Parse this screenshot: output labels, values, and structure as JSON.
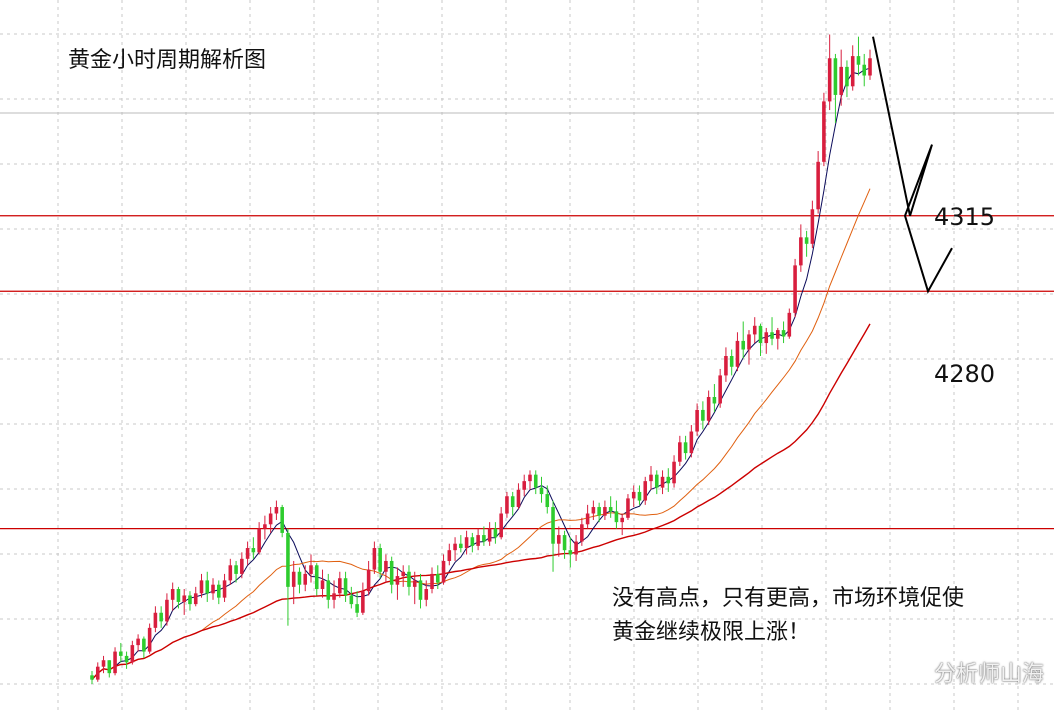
{
  "title": "黄金小时周期解析图",
  "annotation": {
    "line1": "没有高点，只有更高，市场环境促使",
    "line2": "黄金继续极限上涨！"
  },
  "watermark": "分析师山海",
  "colors": {
    "up": "#d81e3e",
    "down": "#2ecc2e",
    "ma_short": "#0a0a5a",
    "ma_mid": "#e06010",
    "ma_long": "#cc0000",
    "level_line": "#cc0000",
    "grid": "#c8c8c8",
    "projection": "#000000"
  },
  "chart_data": {
    "type": "candlestick",
    "title": "黄金小时周期解析图",
    "ylim": [
      4085,
      4415
    ],
    "grid": true,
    "levels": [
      {
        "label": "4315",
        "value": 4315
      },
      {
        "label": "4280",
        "value": 4280
      },
      {
        "label": "",
        "value": 4170
      }
    ],
    "ohlc": [
      [
        4102,
        4104,
        4098,
        4100
      ],
      [
        4100,
        4108,
        4099,
        4106
      ],
      [
        4106,
        4111,
        4103,
        4109
      ],
      [
        4109,
        4109,
        4101,
        4103
      ],
      [
        4103,
        4115,
        4102,
        4113
      ],
      [
        4113,
        4117,
        4108,
        4111
      ],
      [
        4111,
        4113,
        4105,
        4108
      ],
      [
        4108,
        4118,
        4107,
        4116
      ],
      [
        4116,
        4121,
        4113,
        4119
      ],
      [
        4119,
        4120,
        4110,
        4113
      ],
      [
        4113,
        4126,
        4112,
        4124
      ],
      [
        4124,
        4134,
        4122,
        4131
      ],
      [
        4131,
        4134,
        4124,
        4127
      ],
      [
        4127,
        4140,
        4125,
        4137
      ],
      [
        4137,
        4145,
        4132,
        4142
      ],
      [
        4142,
        4143,
        4133,
        4136
      ],
      [
        4136,
        4142,
        4130,
        4139
      ],
      [
        4139,
        4141,
        4132,
        4135
      ],
      [
        4135,
        4143,
        4134,
        4140
      ],
      [
        4140,
        4149,
        4138,
        4146
      ],
      [
        4146,
        4150,
        4136,
        4140
      ],
      [
        4140,
        4147,
        4137,
        4144
      ],
      [
        4144,
        4146,
        4135,
        4138
      ],
      [
        4138,
        4149,
        4136,
        4146
      ],
      [
        4146,
        4156,
        4144,
        4153
      ],
      [
        4153,
        4155,
        4145,
        4149
      ],
      [
        4149,
        4159,
        4147,
        4156
      ],
      [
        4156,
        4164,
        4153,
        4161
      ],
      [
        4161,
        4166,
        4156,
        4159
      ],
      [
        4159,
        4173,
        4158,
        4170
      ],
      [
        4170,
        4176,
        4165,
        4172
      ],
      [
        4172,
        4180,
        4168,
        4177
      ],
      [
        4177,
        4183,
        4174,
        4180
      ],
      [
        4180,
        4181,
        4166,
        4168
      ],
      [
        4168,
        4170,
        4125,
        4143
      ],
      [
        4143,
        4155,
        4135,
        4150
      ],
      [
        4150,
        4152,
        4140,
        4144
      ],
      [
        4144,
        4153,
        4141,
        4149
      ],
      [
        4149,
        4158,
        4145,
        4153
      ],
      [
        4153,
        4154,
        4139,
        4142
      ],
      [
        4142,
        4151,
        4138,
        4146
      ],
      [
        4146,
        4149,
        4133,
        4137
      ],
      [
        4137,
        4146,
        4133,
        4140
      ],
      [
        4140,
        4150,
        4138,
        4147
      ],
      [
        4147,
        4150,
        4136,
        4139
      ],
      [
        4139,
        4143,
        4133,
        4135
      ],
      [
        4135,
        4141,
        4129,
        4131
      ],
      [
        4131,
        4145,
        4130,
        4141
      ],
      [
        4141,
        4155,
        4139,
        4151
      ],
      [
        4151,
        4164,
        4149,
        4161
      ],
      [
        4161,
        4163,
        4147,
        4150
      ],
      [
        4150,
        4158,
        4145,
        4155
      ],
      [
        4155,
        4157,
        4140,
        4144
      ],
      [
        4144,
        4152,
        4137,
        4148
      ],
      [
        4148,
        4153,
        4143,
        4150
      ],
      [
        4150,
        4153,
        4139,
        4143
      ],
      [
        4143,
        4150,
        4135,
        4146
      ],
      [
        4146,
        4149,
        4133,
        4137
      ],
      [
        4137,
        4146,
        4134,
        4142
      ],
      [
        4142,
        4152,
        4140,
        4149
      ],
      [
        4149,
        4153,
        4142,
        4145
      ],
      [
        4145,
        4158,
        4144,
        4155
      ],
      [
        4155,
        4163,
        4153,
        4160
      ],
      [
        4160,
        4166,
        4155,
        4163
      ],
      [
        4163,
        4167,
        4159,
        4161
      ],
      [
        4161,
        4169,
        4158,
        4166
      ],
      [
        4166,
        4168,
        4159,
        4162
      ],
      [
        4162,
        4170,
        4160,
        4167
      ],
      [
        4167,
        4171,
        4162,
        4164
      ],
      [
        4164,
        4173,
        4162,
        4170
      ],
      [
        4170,
        4173,
        4163,
        4166
      ],
      [
        4166,
        4180,
        4165,
        4177
      ],
      [
        4177,
        4187,
        4175,
        4185
      ],
      [
        4185,
        4187,
        4176,
        4180
      ],
      [
        4180,
        4191,
        4179,
        4188
      ],
      [
        4188,
        4195,
        4185,
        4192
      ],
      [
        4192,
        4197,
        4188,
        4195
      ],
      [
        4195,
        4197,
        4186,
        4189
      ],
      [
        4189,
        4194,
        4182,
        4186
      ],
      [
        4186,
        4190,
        4177,
        4180
      ],
      [
        4180,
        4183,
        4150,
        4163
      ],
      [
        4163,
        4171,
        4157,
        4167
      ],
      [
        4167,
        4169,
        4156,
        4160
      ],
      [
        4160,
        4166,
        4152,
        4158
      ],
      [
        4158,
        4167,
        4155,
        4164
      ],
      [
        4164,
        4175,
        4162,
        4172
      ],
      [
        4172,
        4181,
        4170,
        4177
      ],
      [
        4177,
        4183,
        4174,
        4180
      ],
      [
        4180,
        4182,
        4173,
        4176
      ],
      [
        4176,
        4183,
        4174,
        4180
      ],
      [
        4180,
        4185,
        4175,
        4178
      ],
      [
        4178,
        4183,
        4170,
        4173
      ],
      [
        4173,
        4177,
        4167,
        4175
      ],
      [
        4175,
        4186,
        4174,
        4184
      ],
      [
        4184,
        4190,
        4180,
        4187
      ],
      [
        4187,
        4190,
        4181,
        4183
      ],
      [
        4183,
        4194,
        4181,
        4192
      ],
      [
        4192,
        4199,
        4188,
        4195
      ],
      [
        4195,
        4197,
        4186,
        4189
      ],
      [
        4189,
        4197,
        4186,
        4194
      ],
      [
        4194,
        4198,
        4187,
        4191
      ],
      [
        4191,
        4204,
        4189,
        4201
      ],
      [
        4201,
        4213,
        4199,
        4210
      ],
      [
        4210,
        4213,
        4202,
        4205
      ],
      [
        4205,
        4218,
        4203,
        4215
      ],
      [
        4215,
        4228,
        4213,
        4225
      ],
      [
        4225,
        4229,
        4216,
        4220
      ],
      [
        4220,
        4234,
        4218,
        4231
      ],
      [
        4231,
        4237,
        4224,
        4228
      ],
      [
        4228,
        4244,
        4226,
        4241
      ],
      [
        4241,
        4254,
        4238,
        4250
      ],
      [
        4250,
        4253,
        4241,
        4245
      ],
      [
        4245,
        4261,
        4243,
        4257
      ],
      [
        4257,
        4266,
        4249,
        4253
      ],
      [
        4253,
        4262,
        4246,
        4260
      ],
      [
        4260,
        4268,
        4256,
        4264
      ],
      [
        4264,
        4265,
        4250,
        4256
      ],
      [
        4256,
        4263,
        4251,
        4261
      ],
      [
        4261,
        4268,
        4255,
        4258
      ],
      [
        4258,
        4263,
        4253,
        4262
      ],
      [
        4262,
        4266,
        4256,
        4259
      ],
      [
        4259,
        4272,
        4258,
        4270
      ],
      [
        4270,
        4295,
        4268,
        4292
      ],
      [
        4292,
        4311,
        4289,
        4305
      ],
      [
        4305,
        4308,
        4296,
        4302
      ],
      [
        4302,
        4322,
        4300,
        4318
      ],
      [
        4318,
        4345,
        4316,
        4340
      ],
      [
        4340,
        4372,
        4338,
        4368
      ],
      [
        4368,
        4399,
        4364,
        4388
      ],
      [
        4388,
        4390,
        4358,
        4371
      ],
      [
        4371,
        4392,
        4366,
        4384
      ],
      [
        4384,
        4387,
        4370,
        4375
      ],
      [
        4375,
        4394,
        4373,
        4389
      ],
      [
        4389,
        4398,
        4380,
        4385
      ],
      [
        4385,
        4390,
        4375,
        4380
      ],
      [
        4380,
        4392,
        4378,
        4388
      ]
    ],
    "projection_path": [
      [
        4398,
        "start"
      ],
      [
        4315,
        "dip"
      ],
      [
        4348,
        "rebound"
      ],
      [
        4315,
        "drop"
      ],
      [
        4280,
        "low"
      ],
      [
        4300,
        "rebound"
      ]
    ]
  }
}
